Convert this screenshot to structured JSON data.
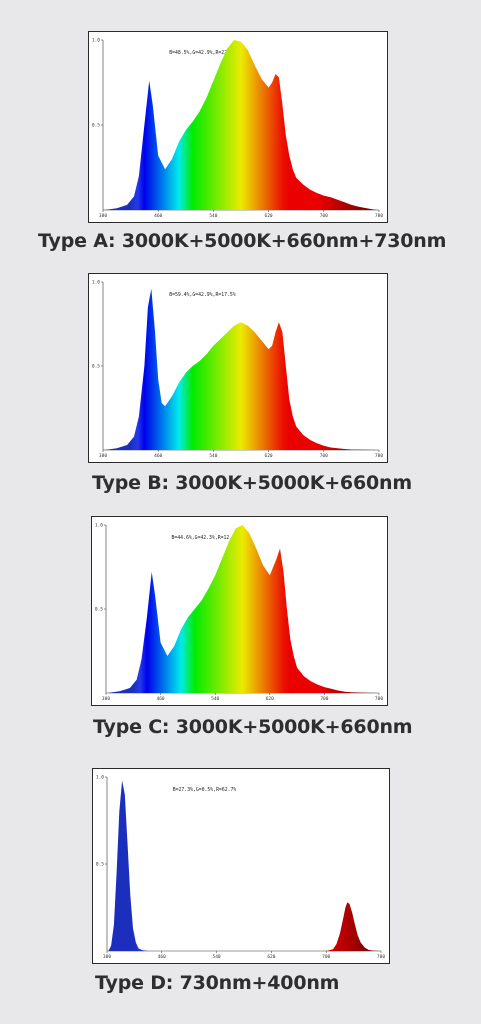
{
  "chart_data": [
    {
      "type": "area",
      "caption": "Type A: 3000K+5000K+660nm+730nm",
      "annotation": "B=48.5%,G=42.9%,R=22.9%",
      "x_ticks": [
        "380",
        "460",
        "540",
        "620",
        "700",
        "780"
      ],
      "y_ticks": [
        "1.0",
        "0.5"
      ],
      "xlim": [
        380,
        780
      ],
      "ylim": [
        0,
        1.0
      ],
      "series": [
        {
          "x": [
            382,
            400,
            415,
            425,
            432,
            440,
            447,
            452,
            460,
            470,
            480,
            490,
            500,
            510,
            520,
            530,
            540,
            550,
            560,
            570,
            580,
            590,
            600,
            610,
            620,
            625,
            630,
            635,
            640,
            645,
            650,
            655,
            660,
            670,
            680,
            690,
            700,
            710,
            720,
            730,
            740,
            750,
            760,
            770,
            778
          ],
          "y": [
            0,
            0.01,
            0.03,
            0.08,
            0.2,
            0.5,
            0.76,
            0.62,
            0.32,
            0.24,
            0.3,
            0.4,
            0.47,
            0.52,
            0.58,
            0.66,
            0.76,
            0.86,
            0.95,
            1.0,
            0.99,
            0.94,
            0.85,
            0.77,
            0.72,
            0.75,
            0.8,
            0.78,
            0.62,
            0.44,
            0.32,
            0.24,
            0.19,
            0.15,
            0.12,
            0.1,
            0.085,
            0.075,
            0.06,
            0.045,
            0.03,
            0.02,
            0.012,
            0.005,
            0
          ]
        }
      ]
    },
    {
      "type": "area",
      "caption": "Type B: 3000K+5000K+660nm",
      "annotation": "B=59.4%,G=42.9%,R=17.5%",
      "x_ticks": [
        "380",
        "460",
        "540",
        "620",
        "700",
        "780"
      ],
      "y_ticks": [
        "1.0",
        "0.5"
      ],
      "xlim": [
        380,
        780
      ],
      "ylim": [
        0,
        1.0
      ],
      "series": [
        {
          "x": [
            382,
            400,
            415,
            425,
            432,
            440,
            445,
            450,
            455,
            460,
            465,
            470,
            480,
            490,
            500,
            510,
            520,
            530,
            540,
            550,
            560,
            570,
            580,
            590,
            600,
            610,
            620,
            625,
            630,
            635,
            640,
            645,
            650,
            655,
            660,
            670,
            680,
            690,
            700,
            710,
            720,
            730,
            740,
            760,
            778
          ],
          "y": [
            0,
            0.01,
            0.03,
            0.08,
            0.2,
            0.5,
            0.85,
            0.96,
            0.72,
            0.42,
            0.28,
            0.26,
            0.32,
            0.4,
            0.46,
            0.5,
            0.53,
            0.57,
            0.62,
            0.66,
            0.7,
            0.74,
            0.76,
            0.74,
            0.7,
            0.65,
            0.6,
            0.62,
            0.7,
            0.76,
            0.7,
            0.5,
            0.3,
            0.2,
            0.14,
            0.09,
            0.06,
            0.04,
            0.025,
            0.015,
            0.01,
            0.006,
            0.003,
            0.001,
            0
          ]
        }
      ]
    },
    {
      "type": "area",
      "caption": "Type C: 3000K+5000K+660nm",
      "annotation": "B=44.6%,G=42.3%,R=12.8%",
      "x_ticks": [
        "380",
        "460",
        "540",
        "620",
        "700",
        "780"
      ],
      "y_ticks": [
        "1.0",
        "0.5"
      ],
      "xlim": [
        380,
        780
      ],
      "ylim": [
        0,
        1.0
      ],
      "series": [
        {
          "x": [
            382,
            400,
            415,
            425,
            432,
            440,
            447,
            452,
            460,
            470,
            480,
            490,
            500,
            510,
            520,
            530,
            540,
            550,
            560,
            570,
            580,
            590,
            600,
            610,
            620,
            630,
            635,
            640,
            645,
            650,
            655,
            660,
            670,
            680,
            690,
            700,
            710,
            720,
            730,
            740,
            760,
            778
          ],
          "y": [
            0,
            0.01,
            0.03,
            0.08,
            0.2,
            0.45,
            0.72,
            0.58,
            0.3,
            0.22,
            0.28,
            0.38,
            0.45,
            0.5,
            0.55,
            0.62,
            0.7,
            0.8,
            0.9,
            0.98,
            1.0,
            0.95,
            0.86,
            0.76,
            0.7,
            0.8,
            0.86,
            0.72,
            0.5,
            0.32,
            0.22,
            0.15,
            0.1,
            0.07,
            0.05,
            0.035,
            0.025,
            0.015,
            0.008,
            0.004,
            0.001,
            0
          ]
        }
      ]
    },
    {
      "type": "area",
      "caption": "Type D: 730nm+400nm",
      "annotation": "B=27.3%,G=0.5%,R=62.7%",
      "x_ticks": [
        "380",
        "460",
        "540",
        "620",
        "700",
        "780"
      ],
      "y_ticks": [
        "1.0",
        "0.5"
      ],
      "xlim": [
        380,
        780
      ],
      "ylim": [
        0,
        1.0
      ],
      "series": [
        {
          "x": [
            382,
            386,
            390,
            394,
            398,
            402,
            406,
            410,
            414,
            418,
            422,
            426,
            432,
            440,
            700,
            710,
            715,
            720,
            725,
            728,
            731,
            734,
            738,
            742,
            746,
            750,
            756,
            762,
            770,
            778
          ],
          "y": [
            0,
            0.03,
            0.15,
            0.45,
            0.8,
            0.98,
            0.9,
            0.62,
            0.32,
            0.13,
            0.05,
            0.015,
            0.004,
            0,
            0,
            0.01,
            0.04,
            0.1,
            0.19,
            0.25,
            0.28,
            0.27,
            0.22,
            0.15,
            0.09,
            0.05,
            0.02,
            0.006,
            0.001,
            0
          ]
        }
      ]
    }
  ]
}
